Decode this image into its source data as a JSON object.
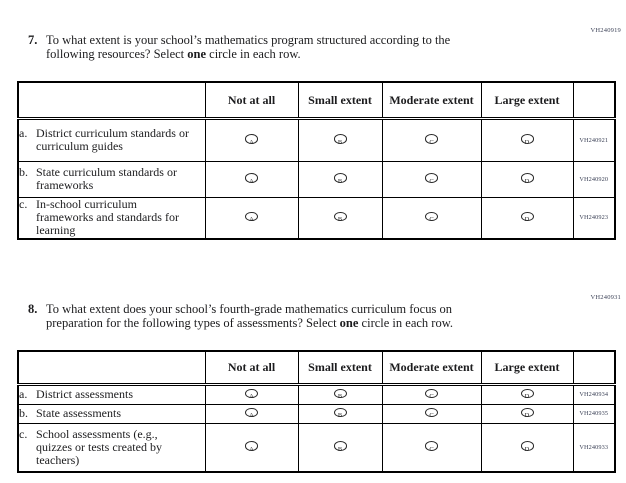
{
  "colors": {
    "ink": "#1c1c1e",
    "border": "#000000",
    "codeInk": "#3c4257",
    "bg": "#ffffff"
  },
  "bubbles": [
    "A",
    "B",
    "C",
    "D"
  ],
  "q7": {
    "code": "VH240919",
    "number": "7.",
    "line1": "To what extent is your school’s mathematics program structured according to the",
    "line2_pre": "following resources? Select",
    "bold_word": "one",
    "line2_post": "circle in each row."
  },
  "table7": {
    "headers": [
      "Not at all",
      "Small extent",
      "Moderate extent",
      "Large extent"
    ],
    "rows": [
      {
        "letter": "a.",
        "label": "District curriculum standards or curriculum guides",
        "code": "VH240921"
      },
      {
        "letter": "b.",
        "label": "State curriculum standards or frameworks",
        "code": "VH240920"
      },
      {
        "letter": "c.",
        "label": "In-school curriculum frameworks and standards for learning",
        "code": "VH240923"
      }
    ]
  },
  "q8": {
    "code": "VH240931",
    "number": "8.",
    "line1": "To what extent does your school’s fourth-grade mathematics curriculum focus on",
    "line2_pre": "preparation for the following types of assessments? Select",
    "bold_word": "one",
    "line2_post": "circle in each row."
  },
  "table8": {
    "headers": [
      "Not at all",
      "Small extent",
      "Moderate extent",
      "Large extent"
    ],
    "rows": [
      {
        "letter": "a.",
        "label": "District assessments",
        "code": "VH240934"
      },
      {
        "letter": "b.",
        "label": "State assessments",
        "code": "VH240935"
      },
      {
        "letter": "c.",
        "label": "School assessments (e.g., quizzes or tests created by teachers)",
        "code": "VH240933"
      }
    ]
  }
}
